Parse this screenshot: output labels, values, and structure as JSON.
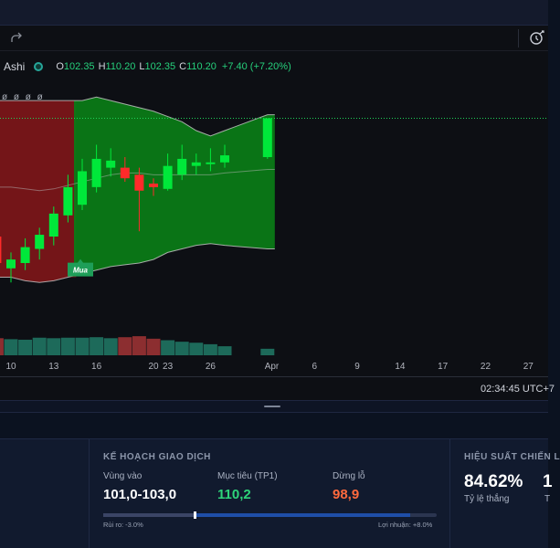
{
  "legend": {
    "symbol": "Ashi",
    "open_label": "O",
    "open": "102.35",
    "high_label": "H",
    "high": "110.20",
    "low_label": "L",
    "low": "102.35",
    "close_label": "C",
    "close": "110.20",
    "change": "+7.40 (+7.20%)"
  },
  "indicator_values": "ø ø ø ø",
  "time_axis": {
    "labels": [
      "10",
      "13",
      "16",
      "20",
      "23",
      "26",
      "Apr",
      "6",
      "9",
      "14",
      "17",
      "22",
      "27"
    ]
  },
  "clock": "02:34:45 UTC+7",
  "signal_badge": "Mua",
  "colors": {
    "bull": "#00e83a",
    "bear": "#ff2a2a",
    "bull_zone": "#0b7a16",
    "bear_zone": "#7a1618",
    "accent_green": "#2ed47a",
    "accent_orange": "#ff6a3d"
  },
  "chart_data": {
    "type": "candlestick",
    "candles": [
      {
        "o": 103.5,
        "h": 104.4,
        "l": 101.4,
        "c": 102.0
      },
      {
        "o": 101.7,
        "h": 102.6,
        "l": 100.9,
        "c": 102.2
      },
      {
        "o": 102.0,
        "h": 103.4,
        "l": 101.6,
        "c": 102.9
      },
      {
        "o": 102.8,
        "h": 104.0,
        "l": 102.2,
        "c": 103.6
      },
      {
        "o": 103.5,
        "h": 105.2,
        "l": 103.0,
        "c": 104.8
      },
      {
        "o": 104.7,
        "h": 107.0,
        "l": 104.3,
        "c": 106.3
      },
      {
        "o": 105.3,
        "h": 107.9,
        "l": 105.0,
        "c": 107.2
      },
      {
        "o": 106.3,
        "h": 108.7,
        "l": 106.0,
        "c": 107.9
      },
      {
        "o": 107.4,
        "h": 108.5,
        "l": 106.9,
        "c": 107.8
      },
      {
        "o": 107.4,
        "h": 108.0,
        "l": 106.6,
        "c": 106.8
      },
      {
        "o": 107.0,
        "h": 107.4,
        "l": 103.8,
        "c": 106.1
      },
      {
        "o": 106.5,
        "h": 106.8,
        "l": 105.8,
        "c": 106.3
      },
      {
        "o": 106.2,
        "h": 108.2,
        "l": 106.1,
        "c": 107.5
      },
      {
        "o": 107.0,
        "h": 108.7,
        "l": 106.7,
        "c": 107.9
      },
      {
        "o": 107.5,
        "h": 108.2,
        "l": 107.0,
        "c": 107.7
      },
      {
        "o": 107.6,
        "h": 108.5,
        "l": 107.2,
        "c": 107.7
      },
      {
        "o": 107.7,
        "h": 108.7,
        "l": 107.4,
        "c": 108.1
      },
      {
        "o": 108.0,
        "h": 110.2,
        "l": 107.9,
        "c": 110.2
      }
    ],
    "candle_days": [
      9,
      10,
      11,
      12,
      13,
      14,
      15,
      16,
      17,
      18,
      19,
      20,
      23,
      24,
      25,
      26,
      27,
      30
    ],
    "volume": [
      34,
      32,
      31,
      35,
      34,
      35,
      35,
      36,
      34,
      36,
      38,
      33,
      30,
      27,
      25,
      22,
      18,
      13
    ],
    "volume_bull": [
      false,
      true,
      true,
      true,
      true,
      true,
      true,
      true,
      true,
      false,
      false,
      false,
      true,
      true,
      true,
      true,
      true,
      true
    ],
    "band_upper": [
      111.2,
      111.2,
      111.2,
      111.2,
      111.2,
      111.2,
      111.2,
      111.4,
      111.2,
      111.0,
      110.8,
      110.6,
      110.3,
      110.0,
      109.5,
      109.2,
      109.5,
      110.4
    ],
    "band_mid": [
      106.3,
      106.3,
      106.2,
      106.1,
      106.2,
      106.4,
      106.6,
      106.8,
      107.0,
      107.1,
      107.1,
      107.0,
      107.0,
      107.0,
      107.0,
      107.0,
      107.1,
      107.3
    ],
    "band_lower": [
      101.2,
      101.2,
      101.0,
      100.9,
      101.0,
      101.2,
      101.4,
      101.6,
      101.8,
      101.9,
      102.0,
      102.2,
      102.6,
      102.8,
      103.0,
      103.1,
      103.0,
      102.8
    ],
    "signal_index": 6,
    "zones": [
      {
        "kind": "bear",
        "from_index": 0,
        "to_index": 5
      },
      {
        "kind": "bull",
        "from_index": 6,
        "to_index": 17
      }
    ],
    "last_price_line": 110.2,
    "ylim": [
      99,
      114
    ]
  },
  "plan": {
    "title": "KẾ HOẠCH GIAO DỊCH",
    "entry_label": "Vùng vào",
    "entry_value": "101,0-103,0",
    "target_label": "Mục tiêu (TP1)",
    "target_value": "110,2",
    "stop_label": "Dừng lỗ",
    "stop_value": "98,9",
    "risk_text": "Rủi ro: -3.0%",
    "profit_text": "Lợi nhuận: +8.0%",
    "risk_pct": 3.0,
    "profit_pct": 8.0
  },
  "performance": {
    "title": "HIỆU SUẤT CHIẾN L",
    "win_rate_value": "84.62%",
    "win_rate_label": "Tỷ lệ thắng",
    "next_value": "1",
    "next_label": "T"
  }
}
